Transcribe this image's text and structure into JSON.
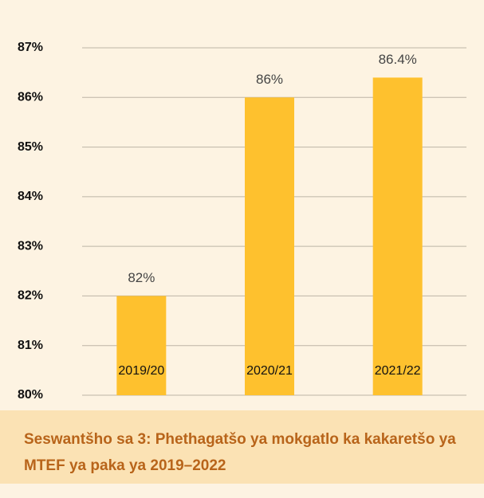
{
  "chart_data": {
    "type": "bar",
    "caption": "Seswantšho sa 3: Phethagatšo ya mokgatlo ka kakaretšo ya MTEF ya paka ya 2019–2022",
    "categories": [
      "2019/20",
      "2020/21",
      "2021/22"
    ],
    "values": [
      82,
      86,
      86.4
    ],
    "value_labels": [
      "82%",
      "86%",
      "86.4%"
    ],
    "color": "#fec12e",
    "ylim": [
      80,
      87
    ],
    "yticks": [
      {
        "value": 80,
        "label": "80%"
      },
      {
        "value": 81,
        "label": "81%"
      },
      {
        "value": 82,
        "label": "82%"
      },
      {
        "value": 83,
        "label": "83%"
      },
      {
        "value": 84,
        "label": "84%"
      },
      {
        "value": 85,
        "label": "85%"
      },
      {
        "value": 86,
        "label": "86%"
      },
      {
        "value": 87,
        "label": "87%"
      }
    ],
    "grid": true
  }
}
